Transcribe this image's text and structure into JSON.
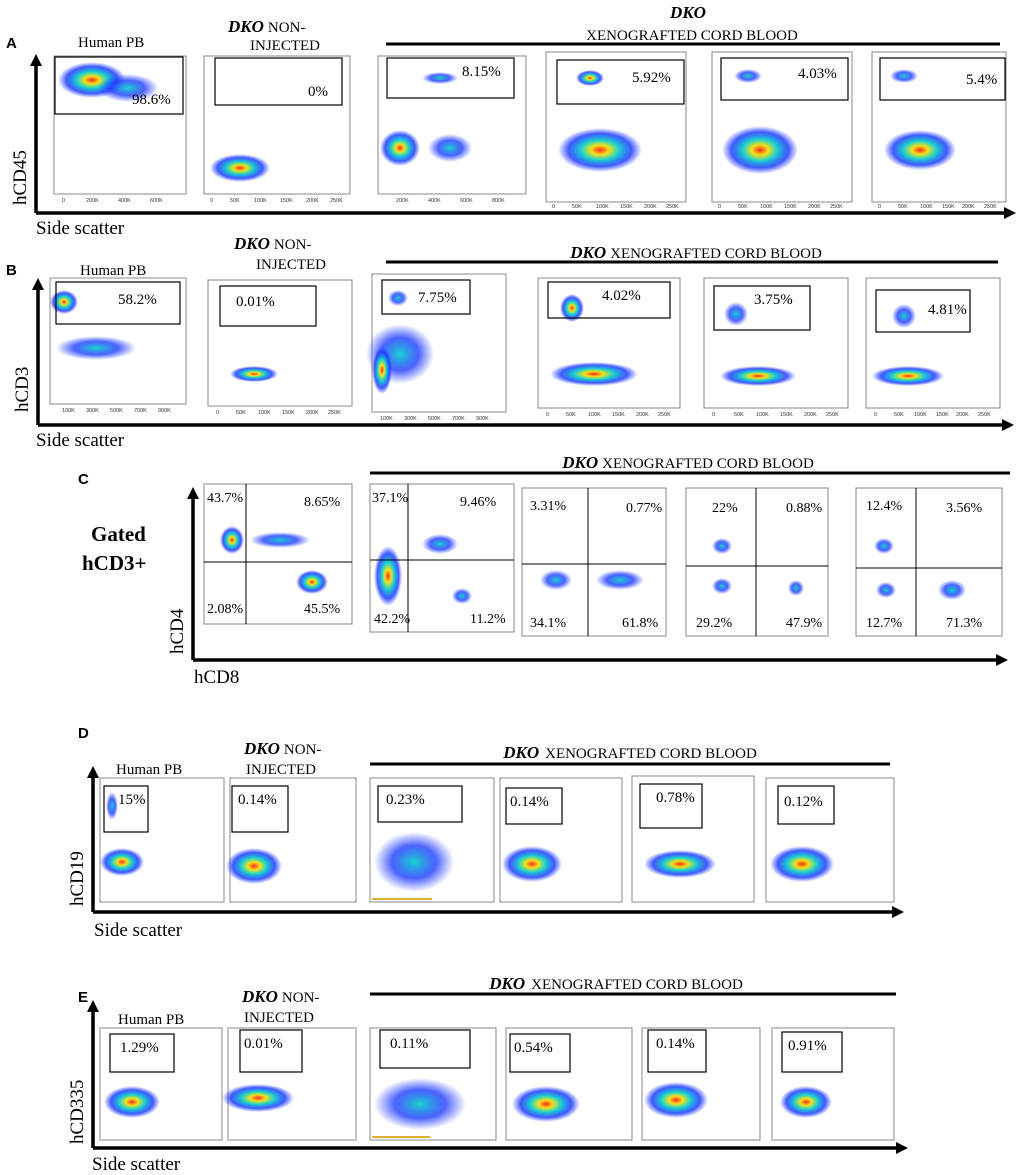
{
  "common": {
    "human_pb": "Human PB",
    "dko": "DKO",
    "non_injected": "NON-",
    "non_injected_2": "INJECTED",
    "xeno": "XENOGRAFTED CORD BLOOD",
    "side_scatter": "Side scatter"
  },
  "panelA": {
    "label": "A",
    "y_axis": "hCD45",
    "plots": [
      {
        "pct": "98.6%",
        "ticks": [
          "0",
          "200K",
          "400K",
          "600K"
        ]
      },
      {
        "pct": "0%",
        "ticks": [
          "0",
          "50K",
          "100K",
          "150K",
          "200K",
          "250K"
        ]
      },
      {
        "pct": "8.15%",
        "ticks": [
          "200K",
          "400K",
          "600K",
          "800K"
        ]
      },
      {
        "pct": "5.92%",
        "ticks": [
          "0",
          "50K",
          "100K",
          "150K",
          "200K",
          "250K"
        ]
      },
      {
        "pct": "4.03%",
        "ticks": [
          "0",
          "50K",
          "100K",
          "150K",
          "200K",
          "250K"
        ]
      },
      {
        "pct": "5.4%",
        "ticks": [
          "0",
          "50K",
          "100K",
          "150K",
          "200K",
          "250K"
        ]
      }
    ]
  },
  "panelB": {
    "label": "B",
    "y_axis": "hCD3",
    "plots": [
      {
        "pct": "58.2%",
        "ticks": [
          "100K",
          "300K",
          "500K",
          "700K",
          "900K"
        ]
      },
      {
        "pct": "0.01%",
        "ticks": [
          "0",
          "50K",
          "100K",
          "150K",
          "200K",
          "250K"
        ]
      },
      {
        "pct": "7.75%",
        "ticks": [
          "100K",
          "300K",
          "500K",
          "700K",
          "900K"
        ]
      },
      {
        "pct": "4.02%",
        "ticks": [
          "0",
          "50K",
          "100K",
          "150K",
          "200K",
          "250K"
        ]
      },
      {
        "pct": "3.75%",
        "ticks": [
          "0",
          "50K",
          "100K",
          "150K",
          "200K",
          "250K"
        ]
      },
      {
        "pct": "4.81%",
        "ticks": [
          "0",
          "50K",
          "100K",
          "150K",
          "200K",
          "250K"
        ]
      }
    ]
  },
  "panelC": {
    "label": "C",
    "gated_1": "Gated",
    "gated_2": "hCD3+",
    "y_axis": "hCD4",
    "x_axis": "hCD8",
    "plots": [
      {
        "q": [
          "43.7%",
          "8.65%",
          "2.08%",
          "45.5%"
        ]
      },
      {
        "q": [
          "37.1%",
          "9.46%",
          "42.2%",
          "11.2%"
        ]
      },
      {
        "q": [
          "3.31%",
          "0.77%",
          "34.1%",
          "61.8%"
        ]
      },
      {
        "q": [
          "22%",
          "0.88%",
          "29.2%",
          "47.9%"
        ]
      },
      {
        "q": [
          "12.4%",
          "3.56%",
          "12.7%",
          "71.3%"
        ]
      }
    ]
  },
  "panelD": {
    "label": "D",
    "y_axis": "hCD19",
    "plots": [
      {
        "pct": "15%"
      },
      {
        "pct": "0.14%"
      },
      {
        "pct": "0.23%"
      },
      {
        "pct": "0.14%"
      },
      {
        "pct": "0.78%"
      },
      {
        "pct": "0.12%"
      }
    ]
  },
  "panelE": {
    "label": "E",
    "y_axis": "hCD335",
    "plots": [
      {
        "pct": "1.29%"
      },
      {
        "pct": "0.01%"
      },
      {
        "pct": "0.11%"
      },
      {
        "pct": "0.54%"
      },
      {
        "pct": "0.14%"
      },
      {
        "pct": "0.91%"
      }
    ]
  },
  "colors": {
    "low": "#1f3bff",
    "mid": "#19d3d0",
    "high": "#f2e21a",
    "peak": "#ff2a1a"
  }
}
